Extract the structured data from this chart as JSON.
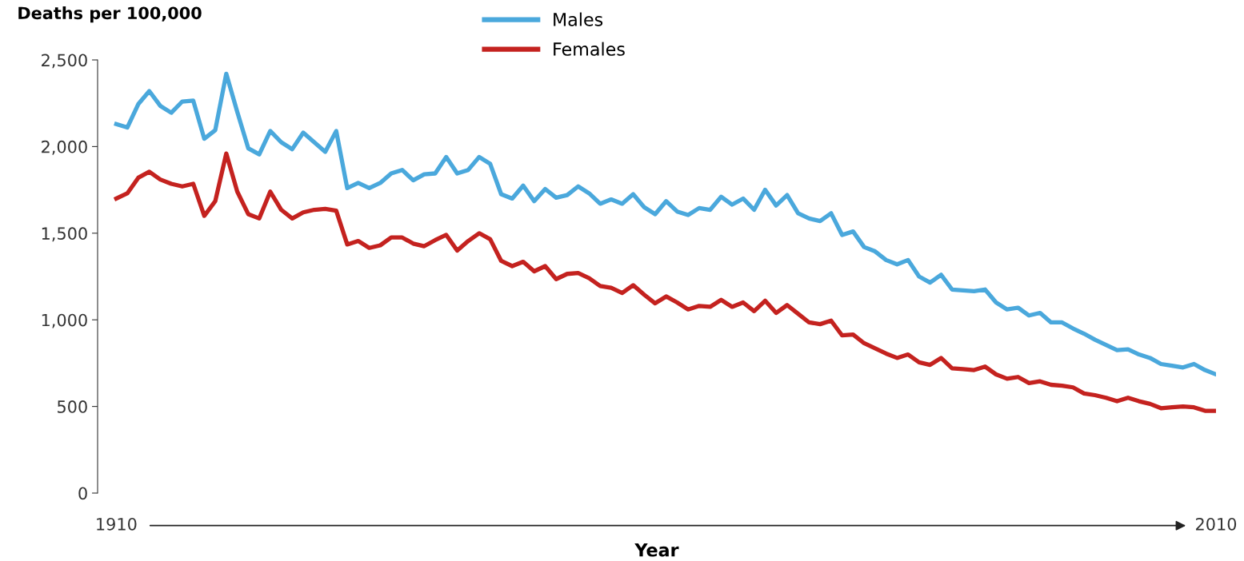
{
  "chart_data": {
    "type": "line",
    "xlabel": "Year",
    "ylabel": "Deaths per 100,000",
    "x": [
      1910,
      1911,
      1912,
      1913,
      1914,
      1915,
      1916,
      1917,
      1918,
      1919,
      1920,
      1921,
      1922,
      1923,
      1924,
      1925,
      1926,
      1927,
      1928,
      1929,
      1930,
      1931,
      1932,
      1933,
      1934,
      1935,
      1936,
      1937,
      1938,
      1939,
      1940,
      1941,
      1942,
      1943,
      1944,
      1945,
      1946,
      1947,
      1948,
      1949,
      1950,
      1951,
      1952,
      1953,
      1954,
      1955,
      1956,
      1957,
      1958,
      1959,
      1960,
      1961,
      1962,
      1963,
      1964,
      1965,
      1966,
      1967,
      1968,
      1969,
      1970,
      1971,
      1972,
      1973,
      1974,
      1975,
      1976,
      1977,
      1978,
      1979,
      1980,
      1981,
      1982,
      1983,
      1984,
      1985,
      1986,
      1987,
      1988,
      1989,
      1990,
      1991,
      1992,
      1993,
      1994,
      1995,
      1996,
      1997,
      1998,
      1999,
      2000,
      2001,
      2002,
      2003,
      2004,
      2005,
      2006,
      2007,
      2008,
      2009,
      2010
    ],
    "series": [
      {
        "name": "Males",
        "color": "#4aa8dc",
        "values": [
          2130,
          2110,
          2245,
          2320,
          2235,
          2195,
          2260,
          2265,
          2045,
          2095,
          2420,
          2200,
          1990,
          1955,
          2090,
          2025,
          1985,
          2080,
          2025,
          1970,
          2090,
          1760,
          1790,
          1760,
          1790,
          1845,
          1865,
          1805,
          1840,
          1845,
          1940,
          1845,
          1865,
          1940,
          1900,
          1725,
          1700,
          1775,
          1685,
          1755,
          1705,
          1720,
          1770,
          1730,
          1670,
          1695,
          1670,
          1725,
          1650,
          1610,
          1685,
          1625,
          1605,
          1645,
          1635,
          1710,
          1665,
          1700,
          1635,
          1750,
          1660,
          1720,
          1615,
          1585,
          1570,
          1615,
          1490,
          1510,
          1420,
          1395,
          1345,
          1320,
          1345,
          1250,
          1215,
          1260,
          1175,
          1170,
          1165,
          1175,
          1100,
          1060,
          1070,
          1025,
          1040,
          985,
          985,
          950,
          920,
          885,
          855,
          825,
          830,
          800,
          780,
          745,
          735,
          725,
          745,
          710,
          685
        ]
      },
      {
        "name": "Females",
        "color": "#c4221f",
        "values": [
          1700,
          1730,
          1820,
          1855,
          1810,
          1785,
          1770,
          1785,
          1600,
          1685,
          1960,
          1740,
          1610,
          1585,
          1740,
          1635,
          1585,
          1620,
          1635,
          1640,
          1630,
          1435,
          1455,
          1415,
          1430,
          1475,
          1475,
          1440,
          1425,
          1460,
          1490,
          1400,
          1455,
          1500,
          1465,
          1340,
          1310,
          1335,
          1280,
          1310,
          1235,
          1265,
          1270,
          1240,
          1195,
          1185,
          1155,
          1200,
          1145,
          1095,
          1135,
          1100,
          1060,
          1080,
          1075,
          1115,
          1075,
          1100,
          1050,
          1110,
          1040,
          1085,
          1035,
          985,
          975,
          995,
          910,
          915,
          865,
          835,
          805,
          780,
          800,
          755,
          740,
          780,
          720,
          715,
          710,
          730,
          685,
          660,
          670,
          635,
          645,
          625,
          620,
          610,
          575,
          565,
          550,
          530,
          550,
          530,
          515,
          490,
          495,
          500,
          495,
          475,
          475
        ]
      }
    ],
    "xlim": [
      1908.3,
      2010
    ],
    "xticks": [
      1910,
      2010
    ],
    "ylim": [
      0,
      2500
    ],
    "yticks": [
      0,
      {
        "value": 500,
        "label": "500"
      },
      {
        "value": 1000,
        "label": "1,000"
      },
      {
        "value": 1500,
        "label": "1,500"
      },
      {
        "value": 2000,
        "label": "2,000"
      },
      {
        "value": 2500,
        "label": "2,500"
      }
    ],
    "legend": "top",
    "grid": false,
    "marker": "none",
    "line_style": "solid"
  }
}
